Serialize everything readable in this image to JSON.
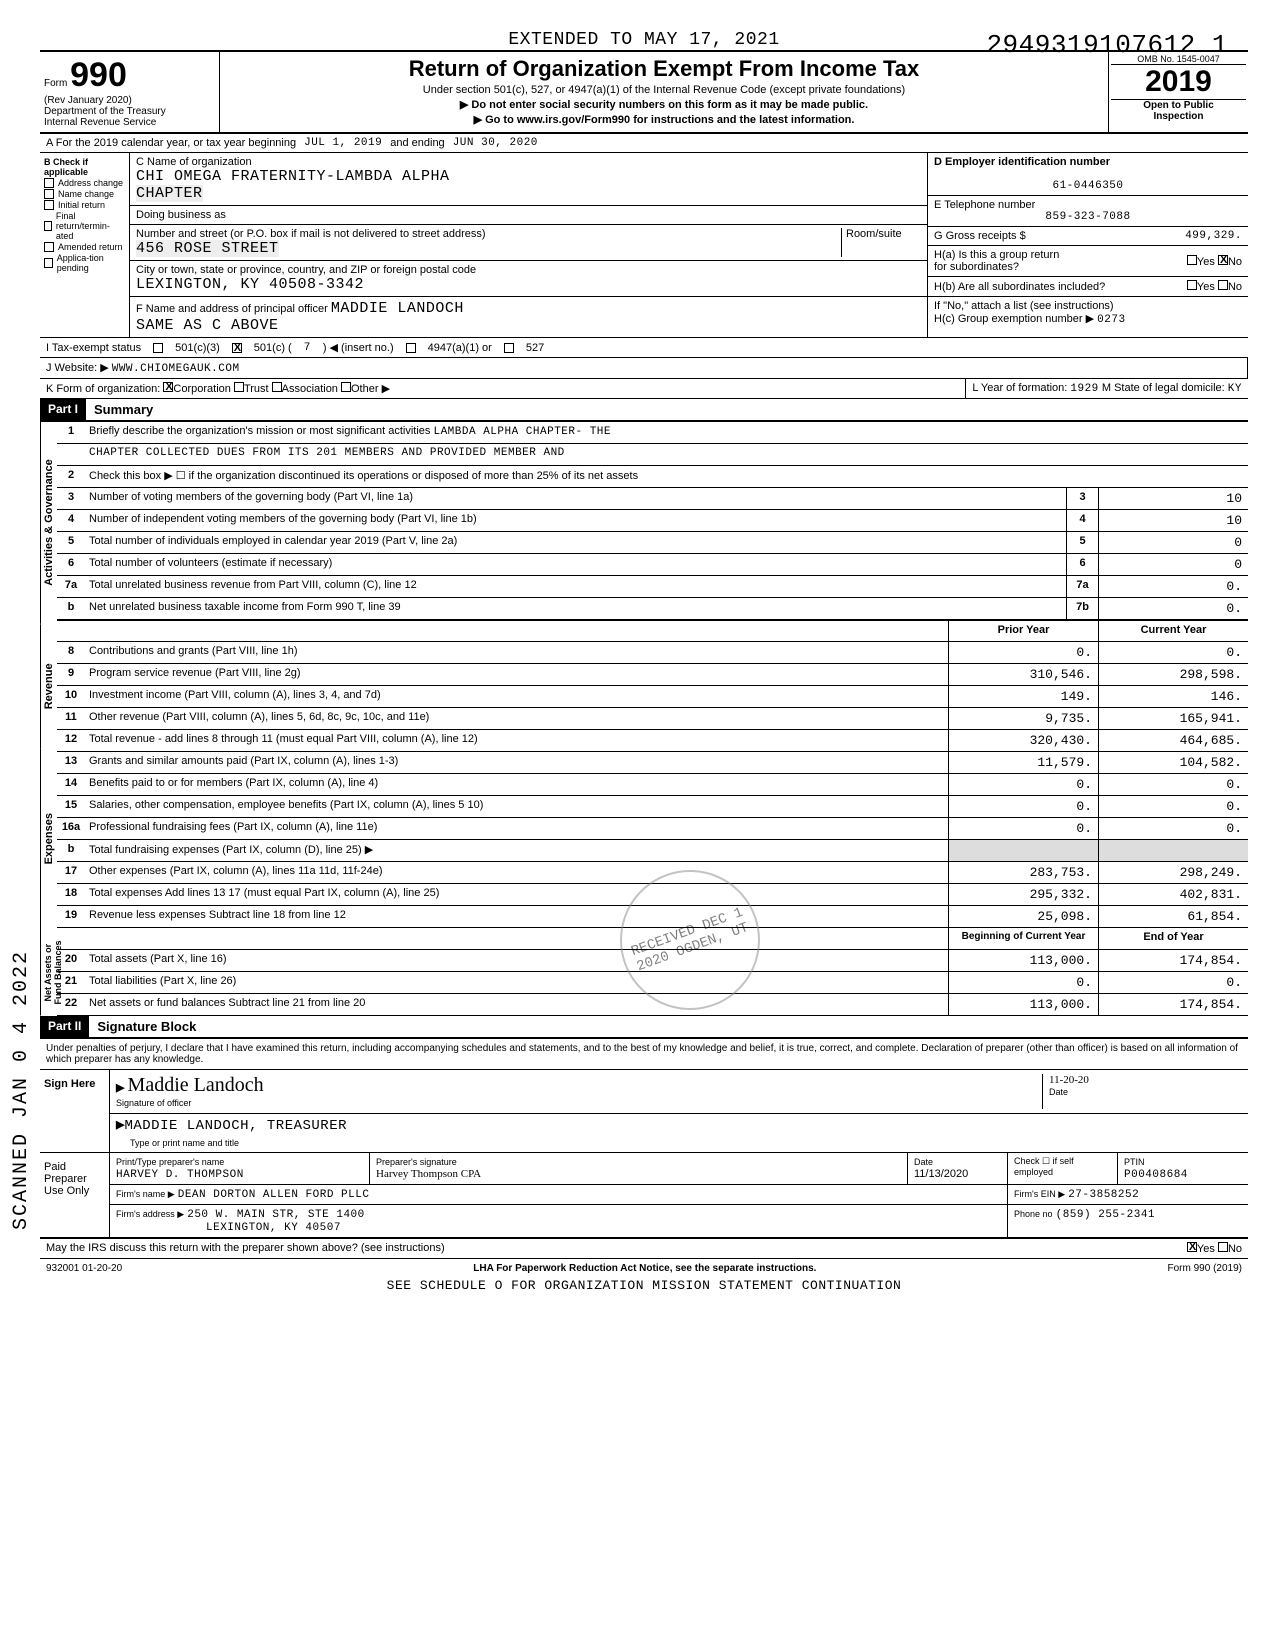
{
  "header": {
    "extended_to": "EXTENDED TO MAY 17, 2021",
    "big_number": "2949319107612 1",
    "form_label": "Form",
    "form_number": "990",
    "rev": "(Rev January 2020)",
    "dept": "Department of the Treasury",
    "irs": "Internal Revenue Service",
    "title": "Return of Organization Exempt From Income Tax",
    "subtitle1": "Under section 501(c), 527, or 4947(a)(1) of the Internal Revenue Code (except private foundations)",
    "subtitle2": "▶ Do not enter social security numbers on this form as it may be made public.",
    "subtitle3": "▶ Go to www.irs.gov/Form990 for instructions and the latest information.",
    "omb": "OMB No. 1545-0047",
    "year": "2019",
    "open": "Open to Public",
    "inspection": "Inspection"
  },
  "line_a": {
    "prefix": "A For the 2019 calendar year, or tax year beginning",
    "begin": "JUL 1, 2019",
    "mid": "and ending",
    "end": "JUN 30, 2020"
  },
  "col_b": {
    "header": "B Check if applicable",
    "items": [
      "Address change",
      "Name change",
      "Initial return",
      "Final return/termin-ated",
      "Amended return",
      "Applica-tion pending"
    ]
  },
  "col_c": {
    "name_label": "C Name of organization",
    "name": "CHI OMEGA FRATERNITY-LAMBDA ALPHA",
    "chapter": "CHAPTER",
    "dba_label": "Doing business as",
    "addr_label": "Number and street (or P.O. box if mail is not delivered to street address)",
    "room_label": "Room/suite",
    "address": "456 ROSE STREET",
    "city_label": "City or town, state or province, country, and ZIP or foreign postal code",
    "city": "LEXINGTON, KY   40508-3342",
    "f_label": "F Name and address of principal officer",
    "f_name": "MADDIE LANDOCH",
    "f_addr": "SAME AS C ABOVE"
  },
  "col_de": {
    "d_label": "D Employer identification number",
    "ein": "61-0446350",
    "e_label": "E Telephone number",
    "phone": "859-323-7088",
    "g_label": "G Gross receipts $",
    "gross": "499,329.",
    "ha_label": "H(a) Is this a group return",
    "ha_sub": "for subordinates?",
    "yes": "Yes",
    "no": "No",
    "hb_label": "H(b) Are all subordinates included?",
    "hb_note": "If \"No,\" attach a list (see instructions)",
    "hc_label": "H(c) Group exemption number ▶",
    "hc_num": "0273"
  },
  "status": {
    "label": "I  Tax-exempt status",
    "opts": [
      "501(c)(3)",
      "501(c) (",
      "7",
      ") ◀ (insert no.)",
      "4947(a)(1) or",
      "527"
    ]
  },
  "row_j": {
    "label": "J Website: ▶",
    "value": "WWW.CHIOMEGAUK.COM"
  },
  "row_k": {
    "label": "K Form of organization:",
    "opts": [
      "Corporation",
      "Trust",
      "Association",
      "Other ▶"
    ],
    "l_label": "L Year of formation:",
    "l_val": "1929",
    "m_label": "M State of legal domicile:",
    "m_val": "KY"
  },
  "part1": {
    "hdr": "Part I",
    "title": "Summary",
    "vert_gov": "Activities & Governance",
    "vert_rev": "Revenue",
    "vert_exp": "Expenses",
    "vert_net": "Net Assets or Fund Balances",
    "line1_label": "Briefly describe the organization's mission or most significant activities",
    "line1_text": "LAMBDA ALPHA CHAPTER- THE",
    "line1_cont": "CHAPTER COLLECTED DUES FROM ITS 201 MEMBERS AND PROVIDED MEMBER AND",
    "line2": "Check this box ▶ ☐ if the organization discontinued its operations or disposed of more than 25% of its net assets",
    "lines_single": [
      {
        "n": "3",
        "desc": "Number of voting members of the governing body (Part VI, line 1a)",
        "box": "3",
        "val": "10"
      },
      {
        "n": "4",
        "desc": "Number of independent voting members of the governing body (Part VI, line 1b)",
        "box": "4",
        "val": "10"
      },
      {
        "n": "5",
        "desc": "Total number of individuals employed in calendar year 2019 (Part V, line 2a)",
        "box": "5",
        "val": "0"
      },
      {
        "n": "6",
        "desc": "Total number of volunteers (estimate if necessary)",
        "box": "6",
        "val": "0"
      },
      {
        "n": "7a",
        "desc": "Total unrelated business revenue from Part VIII, column (C), line 12",
        "box": "7a",
        "val": "0."
      },
      {
        "n": "b",
        "desc": "Net unrelated business taxable income from Form 990 T, line 39",
        "box": "7b",
        "val": "0."
      }
    ],
    "col_prior": "Prior Year",
    "col_current": "Current Year",
    "lines_double": [
      {
        "n": "8",
        "desc": "Contributions and grants (Part VIII, line 1h)",
        "prior": "0.",
        "curr": "0."
      },
      {
        "n": "9",
        "desc": "Program service revenue (Part VIII, line 2g)",
        "prior": "310,546.",
        "curr": "298,598."
      },
      {
        "n": "10",
        "desc": "Investment income (Part VIII, column (A), lines 3, 4, and 7d)",
        "prior": "149.",
        "curr": "146."
      },
      {
        "n": "11",
        "desc": "Other revenue (Part VIII, column (A), lines 5, 6d, 8c, 9c, 10c, and 11e)",
        "prior": "9,735.",
        "curr": "165,941."
      },
      {
        "n": "12",
        "desc": "Total revenue - add lines 8 through 11 (must equal Part VIII, column (A), line 12)",
        "prior": "320,430.",
        "curr": "464,685."
      },
      {
        "n": "13",
        "desc": "Grants and similar amounts paid (Part IX, column (A), lines 1-3)",
        "prior": "11,579.",
        "curr": "104,582."
      },
      {
        "n": "14",
        "desc": "Benefits paid to or for members (Part IX, column (A), line 4)",
        "prior": "0.",
        "curr": "0."
      },
      {
        "n": "15",
        "desc": "Salaries, other compensation, employee benefits (Part IX, column (A), lines 5 10)",
        "prior": "0.",
        "curr": "0."
      },
      {
        "n": "16a",
        "desc": "Professional fundraising fees (Part IX, column (A), line 11e)",
        "prior": "0.",
        "curr": "0."
      }
    ],
    "line16b": {
      "n": "b",
      "desc": "Total fundraising expenses (Part IX, column (D), line 25)   ▶"
    },
    "lines_double2": [
      {
        "n": "17",
        "desc": "Other expenses (Part IX, column (A), lines 11a 11d, 11f-24e)",
        "prior": "283,753.",
        "curr": "298,249."
      },
      {
        "n": "18",
        "desc": "Total expenses  Add lines 13 17 (must equal Part IX, column (A), line 25)",
        "prior": "295,332.",
        "curr": "402,831."
      },
      {
        "n": "19",
        "desc": "Revenue less expenses  Subtract line 18 from line 12",
        "prior": "25,098.",
        "curr": "61,854."
      }
    ],
    "col_begin": "Beginning of Current Year",
    "col_end": "End of Year",
    "lines_net": [
      {
        "n": "20",
        "desc": "Total assets (Part X, line 16)",
        "prior": "113,000.",
        "curr": "174,854."
      },
      {
        "n": "21",
        "desc": "Total liabilities (Part X, line 26)",
        "prior": "0.",
        "curr": "0."
      },
      {
        "n": "22",
        "desc": "Net assets or fund balances  Subtract line 21 from line 20",
        "prior": "113,000.",
        "curr": "174,854."
      }
    ]
  },
  "part2": {
    "hdr": "Part II",
    "title": "Signature Block",
    "declaration": "Under penalties of perjury, I declare that I have examined this return, including accompanying schedules and statements, and to the best of my knowledge and belief, it is true, correct, and complete. Declaration of preparer (other than officer) is based on all information of which preparer has any knowledge.",
    "sign_here": "Sign Here",
    "sig_of_officer": "Signature of officer",
    "date_label": "Date",
    "officer_name": "MADDIE LANDOCH, TREASURER",
    "type_label": "Type or print name and title",
    "paid_label": "Paid Preparer Use Only",
    "prep_name_label": "Print/Type preparer's name",
    "prep_name": "HARVEY D. THOMPSON",
    "prep_sig_label": "Preparer's signature",
    "prep_date_label": "Date",
    "prep_date": "11/13/2020",
    "check_label": "Check ☐ if self employed",
    "ptin_label": "PTIN",
    "ptin": "P00408684",
    "firm_name_label": "Firm's name ▶",
    "firm_name": "DEAN DORTON ALLEN FORD PLLC",
    "firm_ein_label": "Firm's EIN ▶",
    "firm_ein": "27-3858252",
    "firm_addr_label": "Firm's address ▶",
    "firm_addr1": "250 W. MAIN STR, STE 1400",
    "firm_addr2": "LEXINGTON, KY 40507",
    "phone_label": "Phone no",
    "phone": "(859) 255-2341"
  },
  "bottom": {
    "q": "May the IRS discuss this return with the preparer shown above? (see instructions)",
    "yes": "Yes",
    "no": "No"
  },
  "footer": {
    "left": "932001 01-20-20",
    "mid": "LHA  For Paperwork Reduction Act Notice, see the separate instructions.",
    "cont": "SEE SCHEDULE O FOR ORGANIZATION MISSION STATEMENT CONTINUATION",
    "right": "Form 990 (2019)"
  },
  "side": {
    "scanned": "SCANNED  JAN 0 4 2022"
  },
  "stamp": {
    "text": "RECEIVED DEC 1 2020 OGDEN, UT"
  },
  "style": {
    "bg": "#ffffff",
    "text": "#000000",
    "mono_font": "Courier New",
    "body_font": "Arial",
    "border": "#000000"
  }
}
